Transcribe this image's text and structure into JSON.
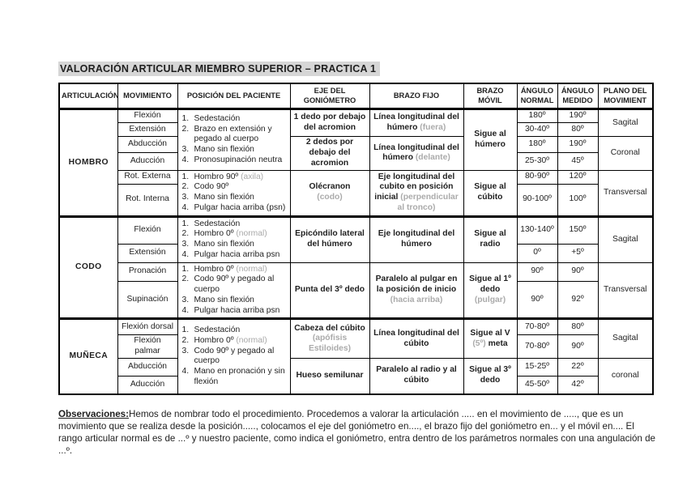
{
  "page": {
    "title": "VALORACIÓN ARTICULAR MIEMBRO SUPERIOR – PRACTICA 1",
    "title_highlight_color": "#d6d6d6",
    "note_color": "#a8a8a8"
  },
  "table": {
    "headers": {
      "articulacion": "ARTICULACIÓN",
      "movimiento": "MOVIMIENTO",
      "posicion": "POSICIÓN DEL PACIENTE",
      "eje": "EJE DEL GONIÓMETRO",
      "brazo_fijo": "BRAZO FIJO",
      "brazo_movil": "BRAZO MÓVIL",
      "angulo_normal": "ÁNGULO NORMAL",
      "angulo_medido": "ÁNGULO MEDIDO",
      "plano": "PLANO DEL MOVIMIENT"
    },
    "sections": [
      {
        "name": "HOMBRO",
        "movements": [
          "Flexión",
          "Extensión",
          "Abducción",
          "Aducción",
          "Rot. Externa",
          "Rot. Interna"
        ],
        "positions": [
          [
            {
              "text": "Sedestación"
            },
            {
              "text": "Brazo en extensión y pegado al cuerpo"
            },
            {
              "text": "Mano sin flexión"
            },
            {
              "text": "Pronosupinación neutra"
            }
          ],
          [
            {
              "text": "Hombro 90º",
              "note": "(axila)"
            },
            {
              "text": "Codo 90º"
            },
            {
              "text": "Mano sin flexión"
            },
            {
              "text": "Pulgar hacia arriba (psn)"
            }
          ]
        ],
        "eje": [
          {
            "main": "1 dedo por debajo del acromion"
          },
          {
            "main": "2 dedos por debajo del acromion"
          },
          {
            "main": "Olécranon",
            "note": "(codo)"
          }
        ],
        "brazo_fijo": [
          {
            "main": "Línea longitudinal del húmero",
            "note": "(fuera)"
          },
          {
            "main": "Línea longitudinal del húmero",
            "note": "(delante)"
          },
          {
            "main": "Eje longitudinal del cubito en posición inicial",
            "note": "(perpendicular al tronco)"
          }
        ],
        "brazo_movil": [
          {
            "main": "Sigue al húmero"
          },
          {
            "main": "Sigue al cúbito"
          }
        ],
        "angles": [
          {
            "normal": "180º",
            "medido": "190º"
          },
          {
            "normal": "30-40º",
            "medido": "80º"
          },
          {
            "normal": "180º",
            "medido": "190º"
          },
          {
            "normal": "25-30º",
            "medido": "45º"
          },
          {
            "normal": "80-90º",
            "medido": "120º"
          },
          {
            "normal": "90-100º",
            "medido": "100º"
          }
        ],
        "planes": [
          "Sagital",
          "Coronal",
          "Transversal"
        ]
      },
      {
        "name": "CODO",
        "movements": [
          "Flexión",
          "Extensión",
          "Pronación",
          "Supinación"
        ],
        "positions": [
          [
            {
              "text": "Sedestación"
            },
            {
              "text": "Hombro 0º",
              "note": "(normal)"
            },
            {
              "text": "Mano sin flexión"
            },
            {
              "text": "Pulgar hacia arriba psn"
            }
          ],
          [
            {
              "text": "Hombro 0º",
              "note": "(normal)"
            },
            {
              "text": "Codo 90º y pegado al cuerpo"
            },
            {
              "text": "Mano sin flexión"
            },
            {
              "text": "Pulgar hacia arriba psn"
            }
          ]
        ],
        "eje": [
          {
            "main": "Epicóndilo lateral del húmero"
          },
          {
            "main": "Punta del 3º dedo"
          }
        ],
        "brazo_fijo": [
          {
            "main": "Eje longitudinal del húmero"
          },
          {
            "main": "Paralelo al pulgar en la posición de inicio",
            "note": "(hacia arriba)"
          }
        ],
        "brazo_movil": [
          {
            "main": "Sigue al radio"
          },
          {
            "main": "Sigue al 1º dedo",
            "note": "(pulgar)"
          }
        ],
        "angles": [
          {
            "normal": "130-140º",
            "medido": "150º"
          },
          {
            "normal": "0º",
            "medido": "+5º"
          },
          {
            "normal": "90º",
            "medido": "90º"
          },
          {
            "normal": "90º",
            "medido": "92º"
          }
        ],
        "planes": [
          "Sagital",
          "Transversal"
        ]
      },
      {
        "name": "MUÑECA",
        "movements": [
          "Flexión dorsal",
          "Flexión palmar",
          "Abducción",
          "Aducción"
        ],
        "positions": [
          [
            {
              "text": "Sedestación"
            },
            {
              "text": "Hombro 0º",
              "note": "(normal)"
            },
            {
              "text": "Codo 90º y pegado al cuerpo"
            },
            {
              "text": "Mano en pronación y sin flexión"
            }
          ]
        ],
        "eje": [
          {
            "main": "Cabeza del cúbito",
            "note": "(apófisis Estiloides)"
          },
          {
            "main": "Hueso semilunar"
          }
        ],
        "brazo_fijo": [
          {
            "main": "Línea longitudinal del cúbito"
          },
          {
            "main": "Paralelo al radio y al cúbito"
          }
        ],
        "brazo_movil": [
          {
            "main": "Sigue al V",
            "note": "(5º)",
            "after": " meta"
          },
          {
            "main": "Sigue al 3º dedo"
          }
        ],
        "angles": [
          {
            "normal": "70-80º",
            "medido": "80º"
          },
          {
            "normal": "70-80º",
            "medido": "90º"
          },
          {
            "normal": "15-25º",
            "medido": "22º"
          },
          {
            "normal": "45-50º",
            "medido": "42º"
          }
        ],
        "planes": [
          "Sagital",
          "coronal"
        ]
      }
    ]
  },
  "observaciones": {
    "label": "Observaciones:",
    "text": "Hemos de nombrar todo el procedimiento. Procedemos a valorar la articulación ..... en el movimiento de ....., que es un movimiento que se realiza desde la posición....., colocamos el eje del goniómetro en...., el brazo fijo del goniómetro en... y el móvil en.... El rango articular normal es de ...º y nuestro paciente, como indica el goniómetro, entra dentro de los parámetros normales con una angulación de ...º."
  }
}
